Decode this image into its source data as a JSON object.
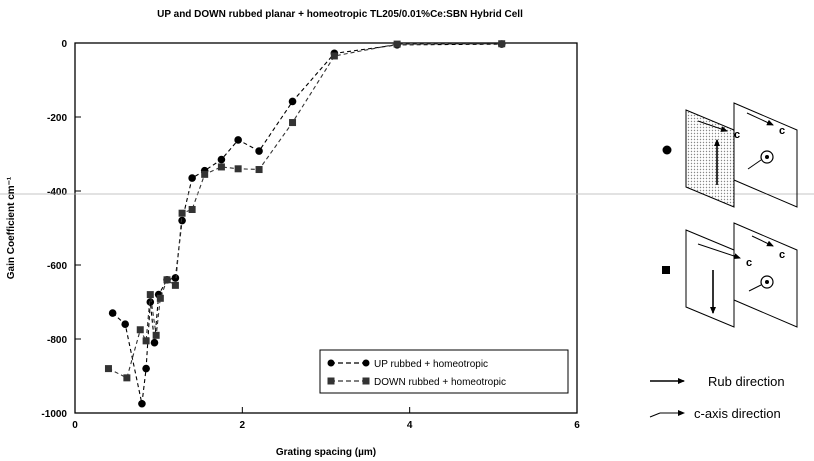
{
  "chart_data": {
    "type": "line",
    "title": "UP and DOWN rubbed planar + homeotropic TL205/0.01%Ce:SBN Hybrid Cell",
    "xlabel": "Grating spacing (µm)",
    "ylabel": "Gain Coefficient cm⁻¹",
    "xlim": [
      0,
      6
    ],
    "ylim": [
      -1000,
      0
    ],
    "xticks": [
      {
        "value": 0,
        "label": "0"
      },
      {
        "value": 2,
        "label": "2"
      },
      {
        "value": 4,
        "label": "4"
      },
      {
        "value": 6,
        "label": "6"
      }
    ],
    "yticks": [
      {
        "value": 0,
        "label": "0"
      },
      {
        "value": -200,
        "label": "-200"
      },
      {
        "value": -400,
        "label": "-400"
      },
      {
        "value": -600,
        "label": "-600"
      },
      {
        "value": -800,
        "label": "-800"
      },
      {
        "value": -1000,
        "label": "-1000"
      }
    ],
    "grid": false,
    "legend_position": "bottom-right",
    "series": [
      {
        "name": "UP rubbed + homeotropic",
        "marker": "circle",
        "color": "#000000",
        "points": [
          [
            0.45,
            -730
          ],
          [
            0.6,
            -760
          ],
          [
            0.8,
            -975
          ],
          [
            0.85,
            -880
          ],
          [
            0.9,
            -700
          ],
          [
            0.95,
            -810
          ],
          [
            1.0,
            -680
          ],
          [
            1.1,
            -640
          ],
          [
            1.2,
            -635
          ],
          [
            1.28,
            -480
          ],
          [
            1.4,
            -365
          ],
          [
            1.55,
            -345
          ],
          [
            1.75,
            -315
          ],
          [
            1.95,
            -262
          ],
          [
            2.2,
            -292
          ],
          [
            2.6,
            -158
          ],
          [
            3.1,
            -28
          ],
          [
            3.85,
            -5
          ],
          [
            5.1,
            -3
          ]
        ]
      },
      {
        "name": "DOWN rubbed + homeotropic",
        "marker": "square",
        "color": "#333333",
        "points": [
          [
            0.4,
            -880
          ],
          [
            0.62,
            -905
          ],
          [
            0.78,
            -775
          ],
          [
            0.85,
            -805
          ],
          [
            0.9,
            -680
          ],
          [
            0.97,
            -790
          ],
          [
            1.02,
            -690
          ],
          [
            1.1,
            -640
          ],
          [
            1.2,
            -655
          ],
          [
            1.28,
            -460
          ],
          [
            1.4,
            -450
          ],
          [
            1.55,
            -355
          ],
          [
            1.75,
            -335
          ],
          [
            1.95,
            -340
          ],
          [
            2.2,
            -342
          ],
          [
            2.6,
            -215
          ],
          [
            3.1,
            -35
          ],
          [
            3.85,
            -3
          ],
          [
            5.1,
            -2
          ]
        ]
      }
    ]
  },
  "diagram": {
    "c_label": "c",
    "legend": {
      "rub": "Rub direction",
      "caxis": "c-axis direction"
    }
  }
}
